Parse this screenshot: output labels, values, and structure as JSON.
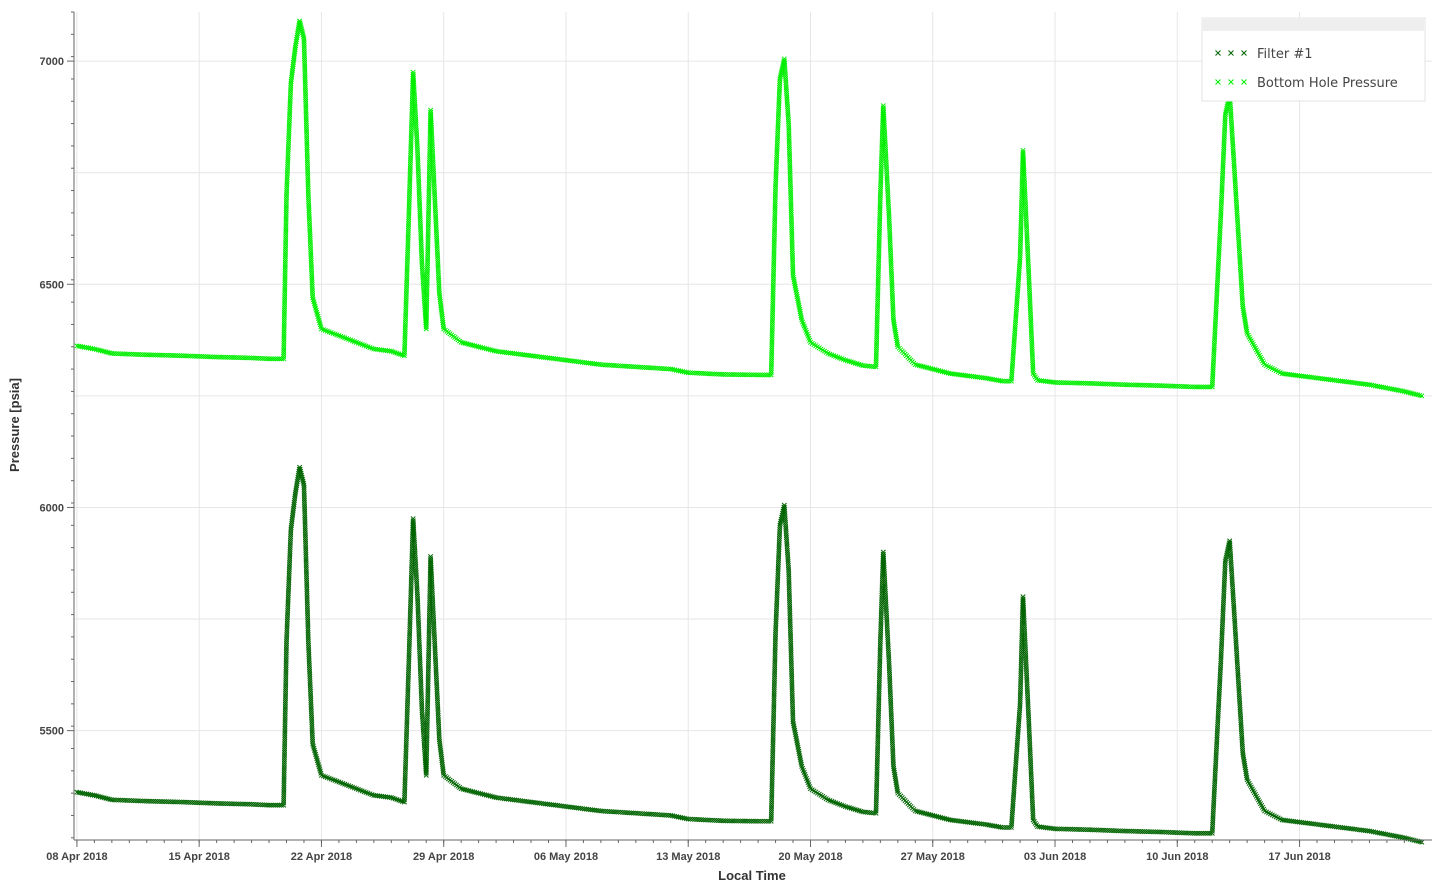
{
  "chart_data": {
    "type": "scatter",
    "title": "",
    "xlabel": "Local Time",
    "ylabel": "Pressure [psia]",
    "x_range": [
      "2018-04-07T20:00",
      "2018-06-24T14:00"
    ],
    "ylim": [
      5255,
      7110
    ],
    "y_ticks": [
      5500,
      6000,
      6500,
      7000
    ],
    "x_ticks": [
      "2018-04-08",
      "2018-04-15",
      "2018-04-22",
      "2018-04-29",
      "2018-05-06",
      "2018-05-13",
      "2018-05-20",
      "2018-05-27",
      "2018-06-03",
      "2018-06-10",
      "2018-06-17"
    ],
    "x_tick_labels": [
      "08 Apr 2018",
      "15 Apr 2018",
      "22 Apr 2018",
      "29 Apr 2018",
      "06 May 2018",
      "13 May 2018",
      "20 May 2018",
      "27 May 2018",
      "03 Jun 2018",
      "10 Jun 2018",
      "17 Jun 2018"
    ],
    "grid": true,
    "marker": "x",
    "legend": {
      "position": "top-right",
      "entries": [
        "Filter #1",
        "Bottom Hole Pressure"
      ]
    },
    "series": [
      {
        "name": "Filter #1",
        "color": "#006400",
        "points": [
          [
            "2018-04-08",
            5362
          ],
          [
            "2018-04-09",
            5355
          ],
          [
            "2018-04-10",
            5345
          ],
          [
            "2018-04-12",
            5342
          ],
          [
            "2018-04-14",
            5340
          ],
          [
            "2018-04-16",
            5337
          ],
          [
            "2018-04-18",
            5335
          ],
          [
            "2018-04-19",
            5333
          ],
          [
            "2018-04-19T20:00",
            5333
          ],
          [
            "2018-04-20",
            5700
          ],
          [
            "2018-04-20T06:00",
            5950
          ],
          [
            "2018-04-20T12:00",
            6030
          ],
          [
            "2018-04-20T18:00",
            6090
          ],
          [
            "2018-04-21",
            6050
          ],
          [
            "2018-04-21T06:00",
            5700
          ],
          [
            "2018-04-21T12:00",
            5470
          ],
          [
            "2018-04-22",
            5400
          ],
          [
            "2018-04-23",
            5385
          ],
          [
            "2018-04-24",
            5370
          ],
          [
            "2018-04-25",
            5355
          ],
          [
            "2018-04-26",
            5350
          ],
          [
            "2018-04-26T18:00",
            5340
          ],
          [
            "2018-04-27",
            5650
          ],
          [
            "2018-04-27T06:00",
            5975
          ],
          [
            "2018-04-27T12:00",
            5800
          ],
          [
            "2018-04-27T18:00",
            5550
          ],
          [
            "2018-04-28",
            5400
          ],
          [
            "2018-04-28T06:00",
            5890
          ],
          [
            "2018-04-28T18:00",
            5480
          ],
          [
            "2018-04-29",
            5400
          ],
          [
            "2018-04-30",
            5370
          ],
          [
            "2018-05-01",
            5360
          ],
          [
            "2018-05-02",
            5350
          ],
          [
            "2018-05-04",
            5340
          ],
          [
            "2018-05-06",
            5330
          ],
          [
            "2018-05-08",
            5320
          ],
          [
            "2018-05-10",
            5315
          ],
          [
            "2018-05-12",
            5310
          ],
          [
            "2018-05-13",
            5302
          ],
          [
            "2018-05-15",
            5298
          ],
          [
            "2018-05-17",
            5297
          ],
          [
            "2018-05-17T18:00",
            5297
          ],
          [
            "2018-05-18",
            5720
          ],
          [
            "2018-05-18T06:00",
            5960
          ],
          [
            "2018-05-18T12:00",
            6005
          ],
          [
            "2018-05-18T18:00",
            5860
          ],
          [
            "2018-05-19",
            5520
          ],
          [
            "2018-05-19T12:00",
            5420
          ],
          [
            "2018-05-20",
            5370
          ],
          [
            "2018-05-21",
            5345
          ],
          [
            "2018-05-22",
            5330
          ],
          [
            "2018-05-23",
            5318
          ],
          [
            "2018-05-23T18:00",
            5315
          ],
          [
            "2018-05-24",
            5700
          ],
          [
            "2018-05-24T04:00",
            5900
          ],
          [
            "2018-05-24T12:00",
            5650
          ],
          [
            "2018-05-24T18:00",
            5420
          ],
          [
            "2018-05-25",
            5360
          ],
          [
            "2018-05-26",
            5320
          ],
          [
            "2018-05-27",
            5310
          ],
          [
            "2018-05-28",
            5300
          ],
          [
            "2018-05-29",
            5295
          ],
          [
            "2018-05-30",
            5290
          ],
          [
            "2018-05-31",
            5283
          ],
          [
            "2018-05-31T12:00",
            5283
          ],
          [
            "2018-06-01",
            5560
          ],
          [
            "2018-06-01T04:00",
            5800
          ],
          [
            "2018-06-01T12:00",
            5520
          ],
          [
            "2018-06-01T18:00",
            5300
          ],
          [
            "2018-06-02",
            5285
          ],
          [
            "2018-06-03",
            5280
          ],
          [
            "2018-06-05",
            5278
          ],
          [
            "2018-06-07",
            5275
          ],
          [
            "2018-06-09",
            5273
          ],
          [
            "2018-06-11",
            5270
          ],
          [
            "2018-06-12",
            5270
          ],
          [
            "2018-06-12T12:00",
            5660
          ],
          [
            "2018-06-12T18:00",
            5880
          ],
          [
            "2018-06-13",
            5925
          ],
          [
            "2018-06-13T06:00",
            5770
          ],
          [
            "2018-06-13T18:00",
            5450
          ],
          [
            "2018-06-14",
            5390
          ],
          [
            "2018-06-15",
            5320
          ],
          [
            "2018-06-16",
            5300
          ],
          [
            "2018-06-17",
            5295
          ],
          [
            "2018-06-19",
            5285
          ],
          [
            "2018-06-21",
            5275
          ],
          [
            "2018-06-23",
            5260
          ],
          [
            "2018-06-24",
            5250
          ]
        ]
      },
      {
        "name": "Bottom Hole Pressure",
        "color": "#00ee00",
        "points": [
          [
            "2018-04-08",
            6362
          ],
          [
            "2018-04-09",
            6355
          ],
          [
            "2018-04-10",
            6345
          ],
          [
            "2018-04-12",
            6342
          ],
          [
            "2018-04-14",
            6340
          ],
          [
            "2018-04-16",
            6337
          ],
          [
            "2018-04-18",
            6335
          ],
          [
            "2018-04-19",
            6333
          ],
          [
            "2018-04-19T20:00",
            6333
          ],
          [
            "2018-04-20",
            6700
          ],
          [
            "2018-04-20T06:00",
            6950
          ],
          [
            "2018-04-20T12:00",
            7030
          ],
          [
            "2018-04-20T18:00",
            7090
          ],
          [
            "2018-04-21",
            7050
          ],
          [
            "2018-04-21T06:00",
            6700
          ],
          [
            "2018-04-21T12:00",
            6470
          ],
          [
            "2018-04-22",
            6400
          ],
          [
            "2018-04-23",
            6385
          ],
          [
            "2018-04-24",
            6370
          ],
          [
            "2018-04-25",
            6355
          ],
          [
            "2018-04-26",
            6350
          ],
          [
            "2018-04-26T18:00",
            6340
          ],
          [
            "2018-04-27",
            6650
          ],
          [
            "2018-04-27T06:00",
            6975
          ],
          [
            "2018-04-27T12:00",
            6800
          ],
          [
            "2018-04-27T18:00",
            6550
          ],
          [
            "2018-04-28",
            6400
          ],
          [
            "2018-04-28T06:00",
            6890
          ],
          [
            "2018-04-28T18:00",
            6480
          ],
          [
            "2018-04-29",
            6400
          ],
          [
            "2018-04-30",
            6370
          ],
          [
            "2018-05-01",
            6360
          ],
          [
            "2018-05-02",
            6350
          ],
          [
            "2018-05-04",
            6340
          ],
          [
            "2018-05-06",
            6330
          ],
          [
            "2018-05-08",
            6320
          ],
          [
            "2018-05-10",
            6315
          ],
          [
            "2018-05-12",
            6310
          ],
          [
            "2018-05-13",
            6302
          ],
          [
            "2018-05-15",
            6298
          ],
          [
            "2018-05-17",
            6297
          ],
          [
            "2018-05-17T18:00",
            6297
          ],
          [
            "2018-05-18",
            6720
          ],
          [
            "2018-05-18T06:00",
            6960
          ],
          [
            "2018-05-18T12:00",
            7005
          ],
          [
            "2018-05-18T18:00",
            6860
          ],
          [
            "2018-05-19",
            6520
          ],
          [
            "2018-05-19T12:00",
            6420
          ],
          [
            "2018-05-20",
            6370
          ],
          [
            "2018-05-21",
            6345
          ],
          [
            "2018-05-22",
            6330
          ],
          [
            "2018-05-23",
            6318
          ],
          [
            "2018-05-23T18:00",
            6315
          ],
          [
            "2018-05-24",
            6700
          ],
          [
            "2018-05-24T04:00",
            6900
          ],
          [
            "2018-05-24T12:00",
            6650
          ],
          [
            "2018-05-24T18:00",
            6420
          ],
          [
            "2018-05-25",
            6360
          ],
          [
            "2018-05-26",
            6320
          ],
          [
            "2018-05-27",
            6310
          ],
          [
            "2018-05-28",
            6300
          ],
          [
            "2018-05-29",
            6295
          ],
          [
            "2018-05-30",
            6290
          ],
          [
            "2018-05-31",
            6283
          ],
          [
            "2018-05-31T12:00",
            6283
          ],
          [
            "2018-06-01",
            6560
          ],
          [
            "2018-06-01T04:00",
            6800
          ],
          [
            "2018-06-01T12:00",
            6520
          ],
          [
            "2018-06-01T18:00",
            6300
          ],
          [
            "2018-06-02",
            6285
          ],
          [
            "2018-06-03",
            6280
          ],
          [
            "2018-06-05",
            6278
          ],
          [
            "2018-06-07",
            6275
          ],
          [
            "2018-06-09",
            6273
          ],
          [
            "2018-06-11",
            6270
          ],
          [
            "2018-06-12",
            6270
          ],
          [
            "2018-06-12T12:00",
            6660
          ],
          [
            "2018-06-12T18:00",
            6880
          ],
          [
            "2018-06-13",
            6925
          ],
          [
            "2018-06-13T06:00",
            6770
          ],
          [
            "2018-06-13T18:00",
            6450
          ],
          [
            "2018-06-14",
            6390
          ],
          [
            "2018-06-15",
            6320
          ],
          [
            "2018-06-16",
            6300
          ],
          [
            "2018-06-17",
            6295
          ],
          [
            "2018-06-19",
            6285
          ],
          [
            "2018-06-21",
            6275
          ],
          [
            "2018-06-23",
            6260
          ],
          [
            "2018-06-24",
            6250
          ]
        ]
      }
    ]
  }
}
